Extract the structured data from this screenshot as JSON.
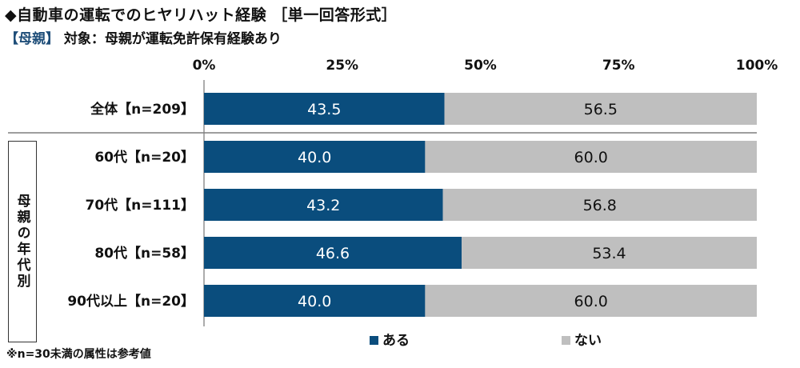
{
  "title": "◆自動車の運転でのヒヤリハット経験 ［単一回答形式］",
  "subtitle": {
    "tag": "【母親】",
    "text": "対象：母親が運転免許保有経験あり"
  },
  "footnote": "※n=30未満の属性は参考値",
  "group_label": "母親の年代別",
  "colors": {
    "aru": "#0a4d7d",
    "nai": "#bfbfbf",
    "separator": "#7f7f7f"
  },
  "chart_data": {
    "type": "bar",
    "orientation": "horizontal",
    "stacked": "percent",
    "categories": [
      "全体【n=209】",
      "60代【n=20】",
      "70代【n=111】",
      "80代【n=58】",
      "90代以上【n=20】"
    ],
    "series": [
      {
        "name": "ある",
        "values": [
          43.5,
          40.0,
          43.2,
          46.6,
          40.0
        ]
      },
      {
        "name": "ない",
        "values": [
          56.5,
          60.0,
          56.8,
          53.4,
          60.0
        ]
      }
    ],
    "xlim": [
      0,
      100
    ],
    "ticks": [
      "0%",
      "25%",
      "50%",
      "75%",
      "100%"
    ],
    "legend_position": "bottom",
    "grid": false
  }
}
